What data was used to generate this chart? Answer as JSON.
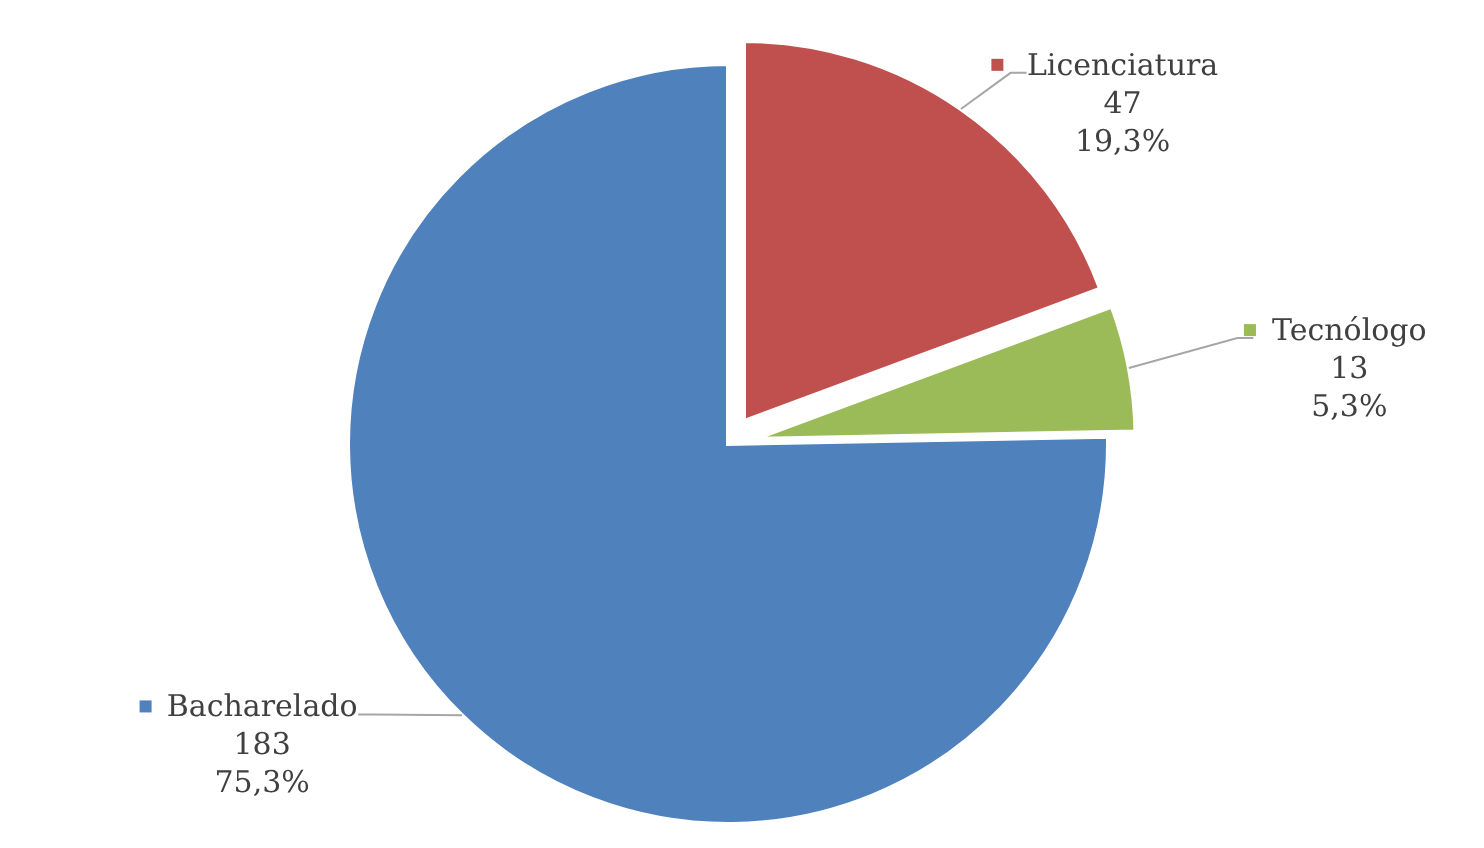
{
  "chart_data": {
    "type": "pie",
    "categories": [
      "Licenciatura",
      "Tecnólogo",
      "Bacharelado"
    ],
    "values": [
      47,
      13,
      183
    ],
    "colors": [
      "#c0504d",
      "#9bbb59",
      "#4f81bd"
    ],
    "legend": "right",
    "value_labels": [
      "47\n19,3%",
      "13\n5,3%",
      "183\n75,3%"
    ]
  }
}
